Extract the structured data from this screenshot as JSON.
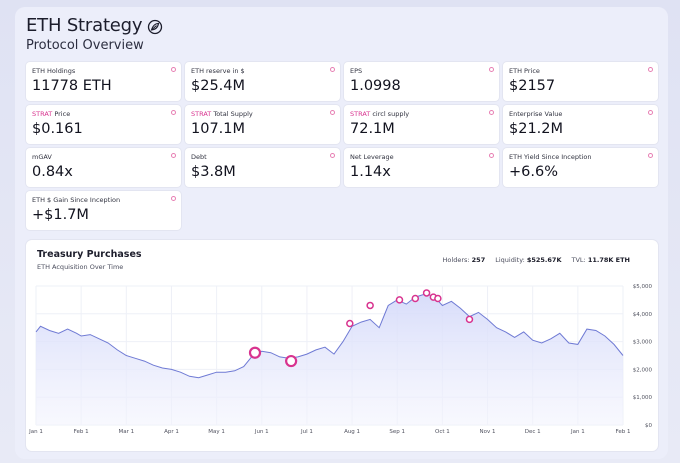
{
  "header": {
    "title": "ETH Strategy",
    "subtitle": "Protocol Overview",
    "logo_icon": "leaf-swirl-icon"
  },
  "colors": {
    "accent": "#d8338f",
    "line": "#6f7ad4",
    "fill": "#dfe3fb",
    "page_bg": "#eceefa"
  },
  "metrics": [
    {
      "prefix": "",
      "label": "ETH Holdings",
      "value": "11778 ETH"
    },
    {
      "prefix": "",
      "label": "ETH reserve in $",
      "value": "$25.4M"
    },
    {
      "prefix": "",
      "label": "EPS",
      "value": "1.0998"
    },
    {
      "prefix": "",
      "label": "ETH Price",
      "value": "$2157"
    },
    {
      "prefix": "STRAT",
      "label": " Price",
      "value": "$0.161"
    },
    {
      "prefix": "STRAT",
      "label": " Total Supply",
      "value": "107.1M"
    },
    {
      "prefix": "STRAT",
      "label": " circl supply",
      "value": "72.1M"
    },
    {
      "prefix": "",
      "label": "Enterprise Value",
      "value": "$21.2M"
    },
    {
      "prefix": "",
      "label": "mGAV",
      "value": "0.84x"
    },
    {
      "prefix": "",
      "label": "Debt",
      "value": "$3.8M"
    },
    {
      "prefix": "",
      "label": "Net Leverage",
      "value": "1.14x"
    },
    {
      "prefix": "",
      "label": "ETH Yield Since Inception",
      "value": "+6.6%"
    },
    {
      "prefix": "",
      "label": "ETH $ Gain Since Inception",
      "value": "+$1.7M"
    }
  ],
  "chart": {
    "title": "Treasury Purchases",
    "subtitle": "ETH Acquisition Over Time",
    "stats": [
      {
        "label": "Holders:",
        "value": "257"
      },
      {
        "label": "Liquidity:",
        "value": "$525.67K"
      },
      {
        "label": "TVL:",
        "value": "11.78K ETH"
      }
    ]
  },
  "chart_data": {
    "type": "area",
    "title": "Treasury Purchases",
    "subtitle": "ETH Acquisition Over Time",
    "x_ticks": [
      "Jan 1",
      "Feb 1",
      "Mar 1",
      "Apr 1",
      "May 1",
      "Jun 1",
      "Jul 1",
      "Aug 1",
      "Sep 1",
      "Oct 1",
      "Nov 1",
      "Dec 1",
      "Jan 1",
      "Feb 1"
    ],
    "y_ticks": [
      "$0",
      "$1,000",
      "$2,000",
      "$3,000",
      "$4,000",
      "$5,000"
    ],
    "ylim": [
      0,
      5000
    ],
    "xlim": [
      0,
      13
    ],
    "grid": true,
    "series": [
      {
        "x": [
          0,
          0.1,
          0.3,
          0.5,
          0.7,
          0.9,
          1.0,
          1.2,
          1.4,
          1.6,
          1.8,
          2.0,
          2.2,
          2.4,
          2.6,
          2.8,
          3.0,
          3.2,
          3.4,
          3.6,
          3.8,
          4.0,
          4.2,
          4.4,
          4.6,
          4.8,
          5.0,
          5.2,
          5.4,
          5.6,
          5.8,
          6.0,
          6.2,
          6.4,
          6.6,
          6.8,
          7.0,
          7.2,
          7.4,
          7.6,
          7.8,
          8.0,
          8.2,
          8.4,
          8.6,
          8.8,
          9.0,
          9.2,
          9.4,
          9.6,
          9.8,
          10.0,
          10.2,
          10.4,
          10.6,
          10.8,
          11.0,
          11.2,
          11.4,
          11.6,
          11.8,
          12.0,
          12.2,
          12.4,
          12.6,
          12.8,
          13.0
        ],
        "y": [
          3350,
          3550,
          3400,
          3300,
          3450,
          3300,
          3200,
          3250,
          3100,
          2950,
          2700,
          2500,
          2400,
          2300,
          2150,
          2050,
          2000,
          1900,
          1750,
          1700,
          1800,
          1900,
          1900,
          1950,
          2100,
          2500,
          2650,
          2600,
          2450,
          2400,
          2450,
          2550,
          2700,
          2800,
          2550,
          3000,
          3550,
          3700,
          3800,
          3500,
          4300,
          4500,
          4350,
          4600,
          4700,
          4650,
          4300,
          4450,
          4200,
          3900,
          4050,
          3800,
          3500,
          3350,
          3150,
          3350,
          3050,
          2950,
          3100,
          3300,
          2950,
          2900,
          3450,
          3400,
          3200,
          2900,
          2500
        ]
      }
    ],
    "purchase_markers": [
      {
        "x": 4.85,
        "y": 2600
      },
      {
        "x": 5.65,
        "y": 2300
      },
      {
        "x": 6.95,
        "y": 3650
      },
      {
        "x": 7.4,
        "y": 4300
      },
      {
        "x": 8.05,
        "y": 4500
      },
      {
        "x": 8.4,
        "y": 4550
      },
      {
        "x": 8.65,
        "y": 4750
      },
      {
        "x": 8.8,
        "y": 4600
      },
      {
        "x": 8.9,
        "y": 4550
      },
      {
        "x": 9.6,
        "y": 3800
      }
    ]
  }
}
